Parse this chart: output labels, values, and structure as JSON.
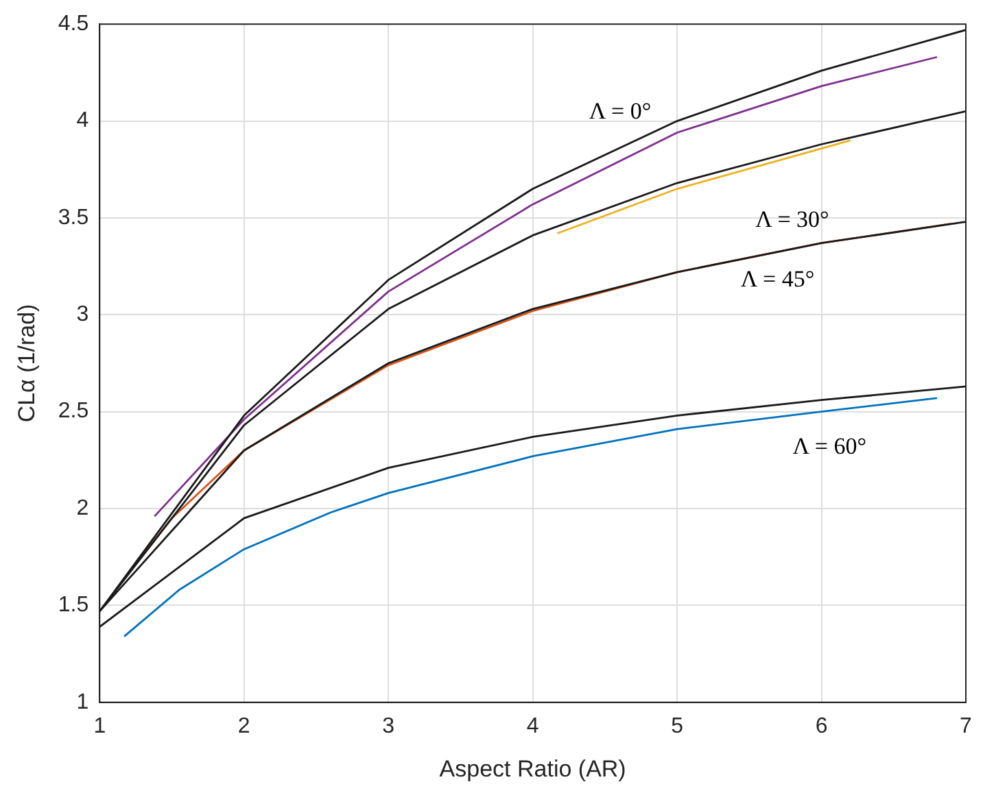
{
  "chart_data": {
    "type": "line",
    "xlabel": "Aspect Ratio (AR)",
    "ylabel": "CLα (1/rad)",
    "xlim": [
      1,
      7
    ],
    "xticks": [
      1,
      2,
      3,
      4,
      5,
      6,
      7
    ],
    "ylim": [
      1,
      4.5
    ],
    "yticks": [
      1,
      1.5,
      2,
      2.5,
      3,
      3.5,
      4,
      4.5
    ],
    "grid": true,
    "legend": false,
    "marker": "none",
    "line_style": "solid",
    "series": [
      {
        "color": "#1a1a1a",
        "x": [
          1,
          2,
          3,
          4,
          5,
          6,
          7
        ],
        "values": [
          1.47,
          2.48,
          3.18,
          3.65,
          4.0,
          4.26,
          4.47
        ]
      },
      {
        "color": "#7e2f8e",
        "x": [
          1.38,
          2,
          3,
          4,
          5,
          6,
          6.8
        ],
        "values": [
          1.96,
          2.46,
          3.12,
          3.57,
          3.94,
          4.18,
          4.33
        ]
      },
      {
        "color": "#1a1a1a",
        "x": [
          1,
          2,
          3,
          4,
          5,
          6,
          7
        ],
        "values": [
          1.47,
          2.43,
          3.03,
          3.41,
          3.68,
          3.88,
          4.05
        ]
      },
      {
        "color": "#edb120",
        "x": [
          4.17,
          5,
          6.2
        ],
        "values": [
          3.42,
          3.65,
          3.9
        ]
      },
      {
        "color": "#1a1a1a",
        "x": [
          1,
          2,
          3,
          4,
          5,
          6,
          7
        ],
        "values": [
          1.47,
          2.3,
          2.75,
          3.03,
          3.22,
          3.37,
          3.48
        ]
      },
      {
        "color": "#d95319",
        "x": [
          1.15,
          1.5,
          2,
          3,
          4,
          5,
          6,
          6.9
        ],
        "values": [
          1.62,
          1.95,
          2.3,
          2.74,
          3.02,
          3.22,
          3.37,
          3.47
        ]
      },
      {
        "color": "#1a1a1a",
        "x": [
          1,
          2,
          3,
          4,
          5,
          6,
          7
        ],
        "values": [
          1.39,
          1.95,
          2.21,
          2.37,
          2.48,
          2.56,
          2.63
        ]
      },
      {
        "color": "#0072bd",
        "x": [
          1.17,
          1.55,
          2,
          2.6,
          3,
          4,
          5,
          6,
          6.8
        ],
        "values": [
          1.34,
          1.58,
          1.79,
          1.98,
          2.08,
          2.27,
          2.41,
          2.5,
          2.57
        ]
      }
    ],
    "annotations": [
      "Λ = 0°",
      "Λ = 30°",
      "Λ = 45°",
      "Λ = 60°"
    ]
  }
}
